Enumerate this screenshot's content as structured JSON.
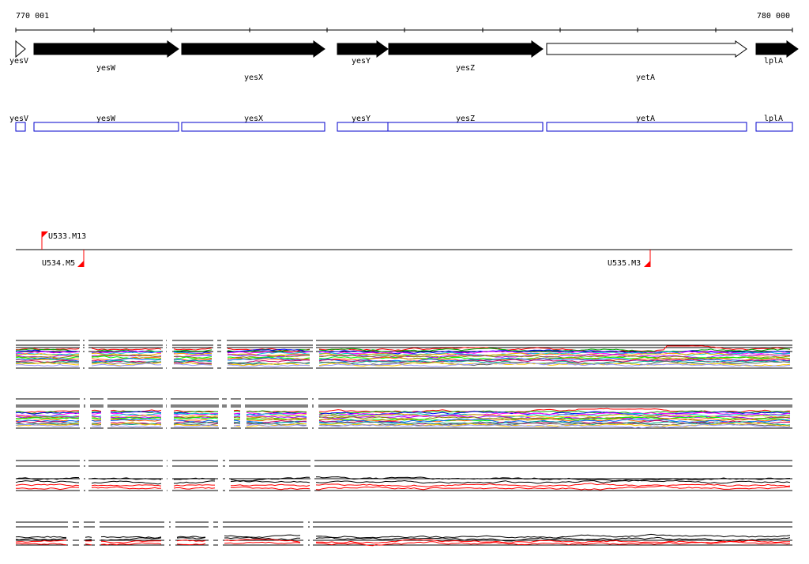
{
  "ruler": {
    "start_label": "770 001",
    "end_label": "780 000",
    "start": 770001,
    "end": 780000
  },
  "genes": [
    {
      "name": "yesV",
      "strand": "+",
      "filled": false
    },
    {
      "name": "yesW",
      "strand": "+",
      "filled": true
    },
    {
      "name": "yesX",
      "strand": "+",
      "filled": true
    },
    {
      "name": "yesY",
      "strand": "+",
      "filled": true
    },
    {
      "name": "yesZ",
      "strand": "+",
      "filled": true
    },
    {
      "name": "yetA",
      "strand": "+",
      "filled": false
    },
    {
      "name": "lplA",
      "strand": "+",
      "filled": true
    }
  ],
  "features": [
    {
      "name": "yesV"
    },
    {
      "name": "yesW"
    },
    {
      "name": "yesX"
    },
    {
      "name": "yesY"
    },
    {
      "name": "yesZ"
    },
    {
      "name": "yetA"
    },
    {
      "name": "lplA"
    }
  ],
  "markers": [
    {
      "name": "U533.M13",
      "side": "above",
      "color": "#ff0000"
    },
    {
      "name": "U534.M5",
      "side": "below",
      "color": "#ff0000"
    },
    {
      "name": "U535.M3",
      "side": "below",
      "color": "#ff0000"
    }
  ],
  "colors": {
    "gene_fill": "#000000",
    "feature_stroke": "#0000cc",
    "marker": "#ff0000",
    "profile_palette": [
      "#ff0000",
      "#00aa00",
      "#0000ff",
      "#ff00ff",
      "#00cccc",
      "#ffaa00",
      "#aa00ff",
      "#888800",
      "#00ff00",
      "#ff6600",
      "#0066ff",
      "#cc0066",
      "#00aa88",
      "#666666",
      "#ffcc00",
      "#9999ff"
    ],
    "profile_dark": "#000000",
    "profile_red": "#ff0000"
  },
  "profiles": [
    {
      "kind": "multi"
    },
    {
      "kind": "multi"
    },
    {
      "kind": "pair"
    },
    {
      "kind": "pair"
    }
  ]
}
